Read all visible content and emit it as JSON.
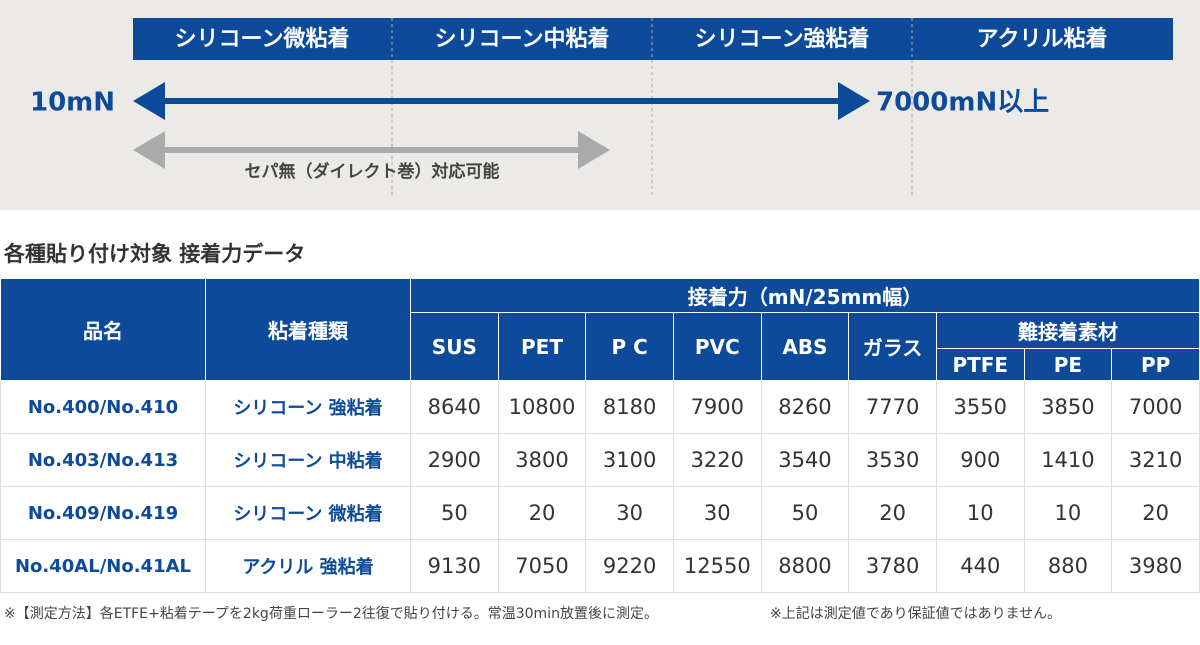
{
  "scale": {
    "segments": [
      "シリコーン微粘着",
      "シリコーン中粘着",
      "シリコーン強粘着",
      "アクリル粘着"
    ],
    "min_label": "10mN",
    "max_label": "7000mN以上",
    "note": "セパ無（ダイレクト巻）対応可能"
  },
  "section_title": "各種貼り付け対象 接着力データ",
  "table": {
    "header": {
      "product": "品名",
      "type": "粘着種類",
      "group": "接着力（mN/25mm幅）",
      "subgroup": "難接着素材",
      "columns": [
        "SUS",
        "PET",
        "P C",
        "PVC",
        "ABS",
        "ガラス",
        "PTFE",
        "PE",
        "PP"
      ]
    },
    "rows": [
      [
        "No.400/No.410",
        "シリコーン 強粘着",
        8640,
        10800,
        8180,
        7900,
        8260,
        7770,
        3550,
        3850,
        7000
      ],
      [
        "No.403/No.413",
        "シリコーン 中粘着",
        2900,
        3800,
        3100,
        3220,
        3540,
        3530,
        900,
        1410,
        3210
      ],
      [
        "No.409/No.419",
        "シリコーン 微粘着",
        50,
        20,
        30,
        30,
        50,
        20,
        10,
        10,
        20
      ],
      [
        "No.40AL/No.41AL",
        "アクリル 強粘着",
        9130,
        7050,
        9220,
        12550,
        8800,
        3780,
        440,
        880,
        3980
      ]
    ]
  },
  "footnotes": [
    "※【測定方法】各ETFE+粘着テープを2kg荷重ローラー2往復で貼り付ける。常温30min放置後に測定。",
    "※上記は測定値であり保証値ではありません。"
  ]
}
